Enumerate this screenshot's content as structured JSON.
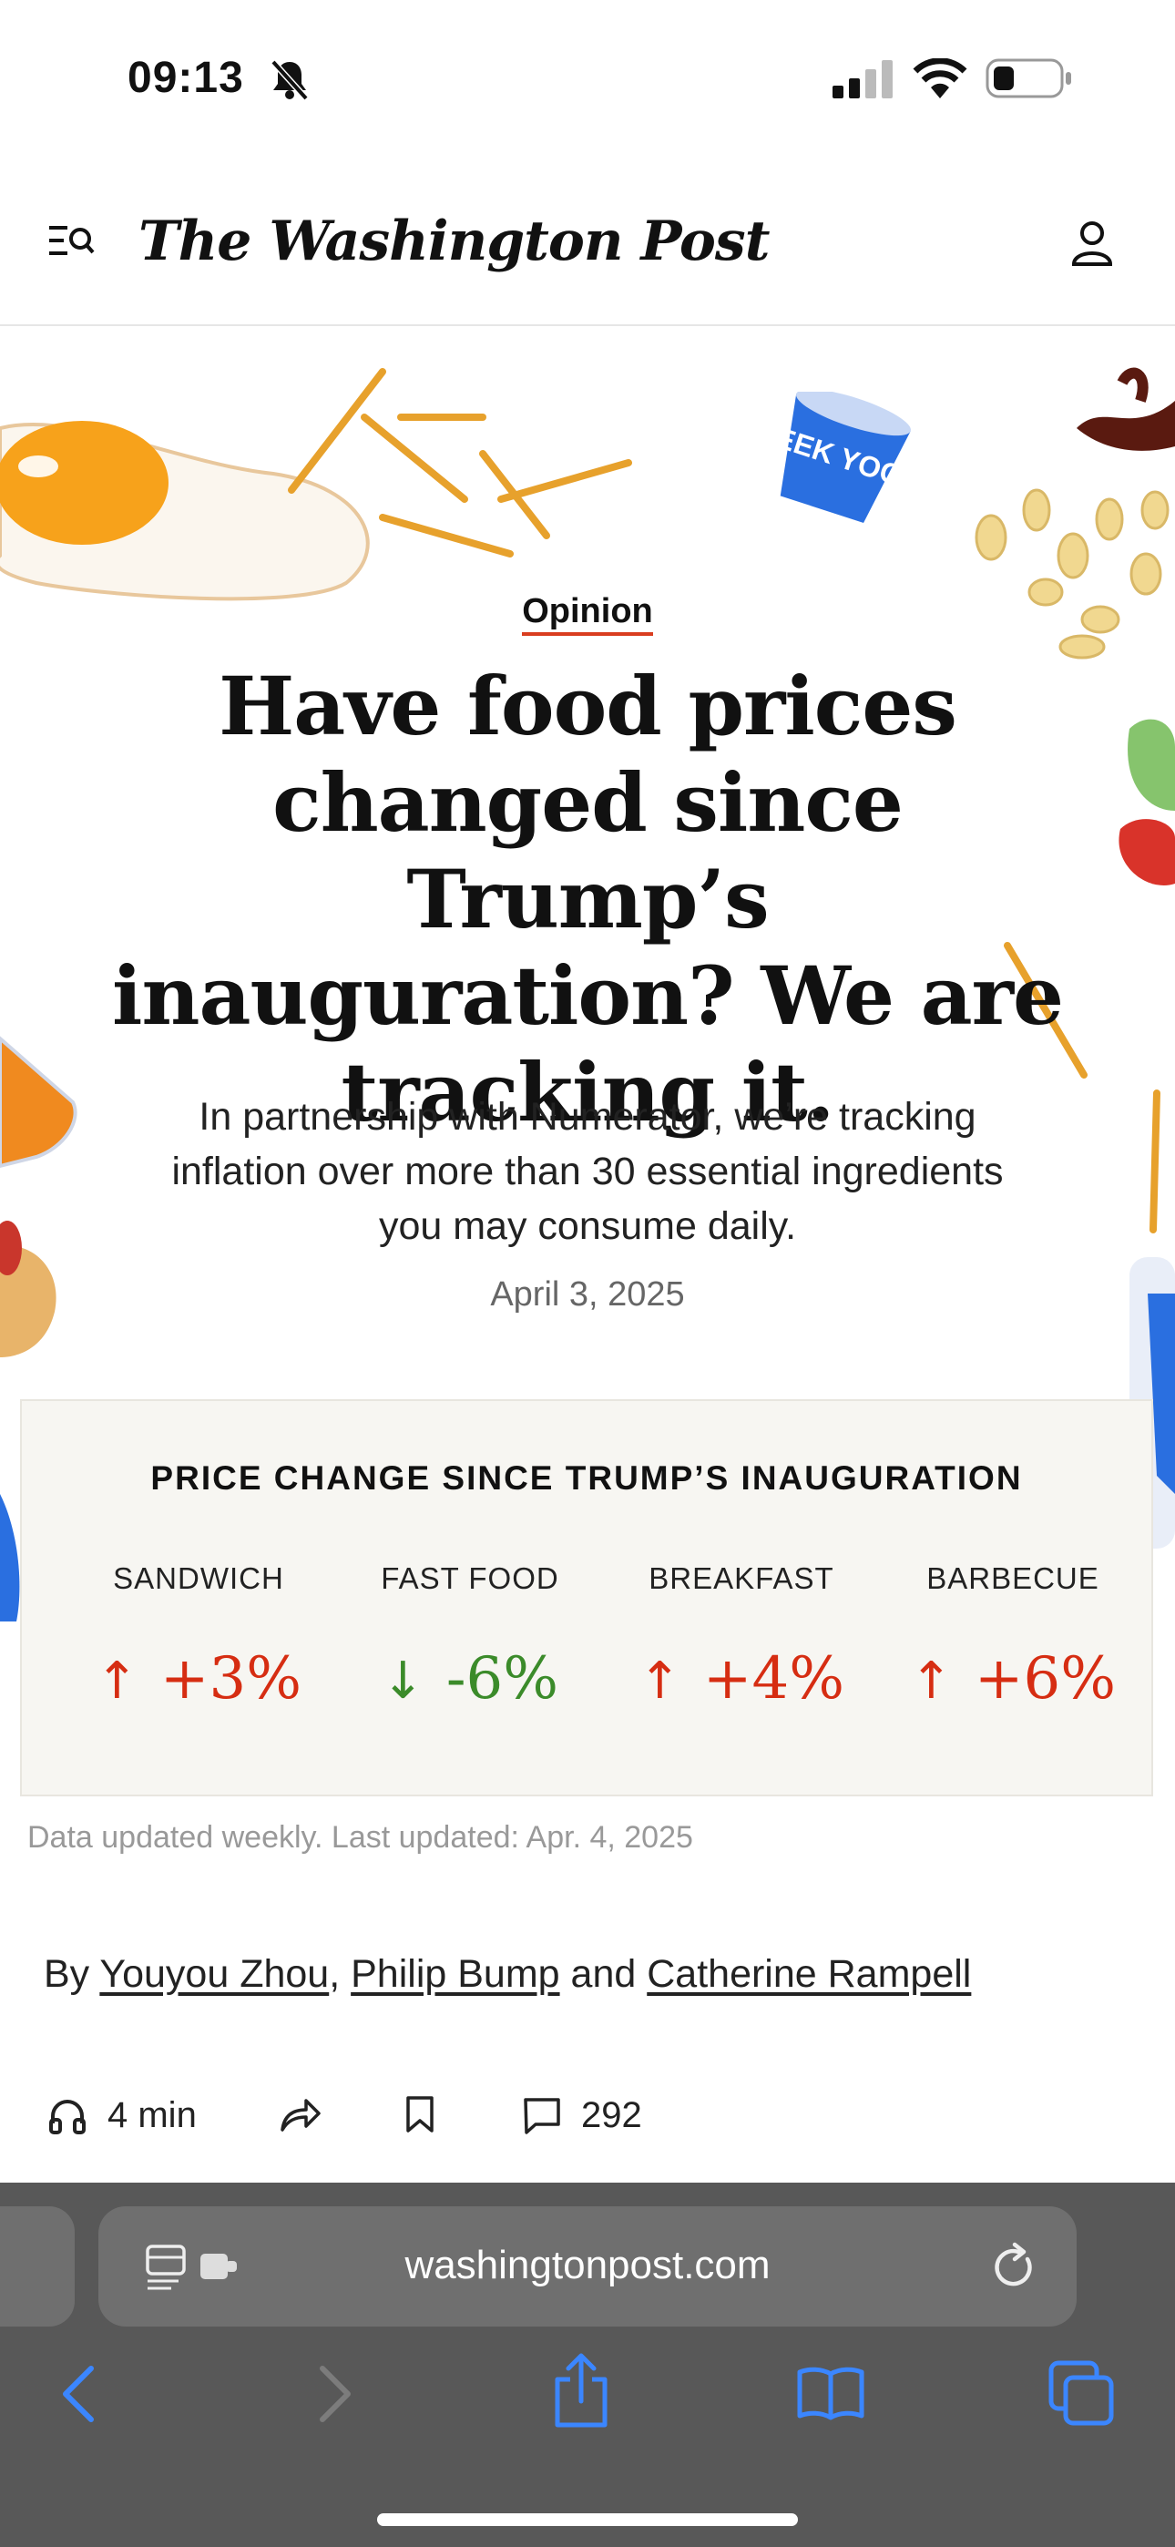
{
  "status_bar": {
    "time": "09:13"
  },
  "header": {
    "masthead": "The Washington Post"
  },
  "article": {
    "section": "Opinion",
    "headline": "Have food prices changed since Trump’s inauguration? We are tracking it.",
    "dek": "In partnership with Numerator, we’re tracking inflation over more than 30 essential ingredients you may consume daily.",
    "date": "April 3, 2025",
    "byline": {
      "prefix": "By",
      "author1": "Youyou Zhou",
      "sep": ",",
      "author2": "Philip Bump",
      "and": "and",
      "author3": "Catherine Rampell"
    },
    "listen": "4 min",
    "comments": "292"
  },
  "price_box": {
    "title": "PRICE CHANGE SINCE TRUMP’S INAUGURATION",
    "items": [
      {
        "label": "SANDWICH",
        "arrow": "↑",
        "change": "+3%"
      },
      {
        "label": "FAST FOOD",
        "arrow": "↓",
        "change": "-6%"
      },
      {
        "label": "BREAKFAST",
        "arrow": "↑",
        "change": "+4%"
      },
      {
        "label": "BARBECUE",
        "arrow": "↑",
        "change": "+6%"
      }
    ],
    "note": "Data updated weekly. Last updated: Apr. 4, 2025"
  },
  "browser": {
    "url": "washingtonpost.com"
  },
  "illustrations": {
    "yogurt_text": "EEK YOG"
  },
  "colors": {
    "up": "#d62d12",
    "down": "#3b8b2a",
    "accent": "#d93d1f",
    "toolbar_icon": "#3b86ff"
  }
}
